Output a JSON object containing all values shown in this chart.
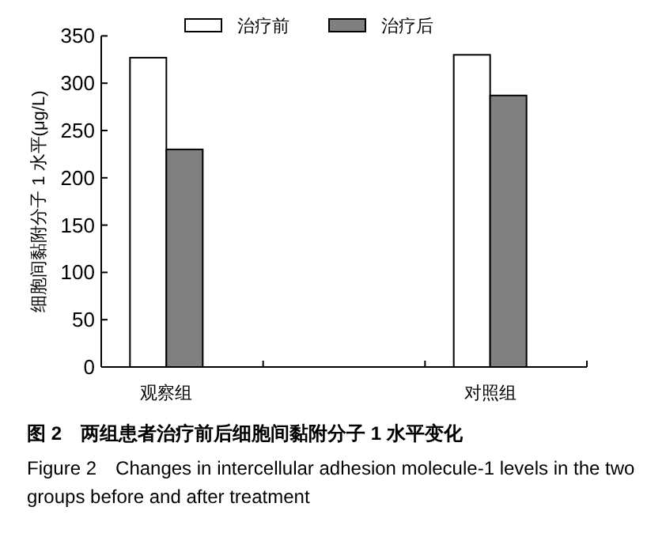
{
  "chart_data": {
    "type": "bar",
    "categories": [
      "观察组",
      null,
      "对照组"
    ],
    "series": [
      {
        "name": "治疗前",
        "color": "#ffffff",
        "values": [
          327,
          null,
          330
        ]
      },
      {
        "name": "治疗后",
        "color": "#808080",
        "values": [
          230,
          null,
          287
        ]
      }
    ],
    "ylabel": "细胞间黏附分子 1 水平(μg/L)",
    "ylim": [
      0,
      350
    ],
    "yticks": [
      0,
      50,
      100,
      150,
      200,
      250,
      300,
      350
    ],
    "legend": "top",
    "annotations": [
      "图 2　两组患者治疗前后细胞间黏附分子 1 水平变化",
      "Figure 2　Changes in intercellular adhesion molecule-1 levels in the two groups before and after treatment"
    ]
  }
}
